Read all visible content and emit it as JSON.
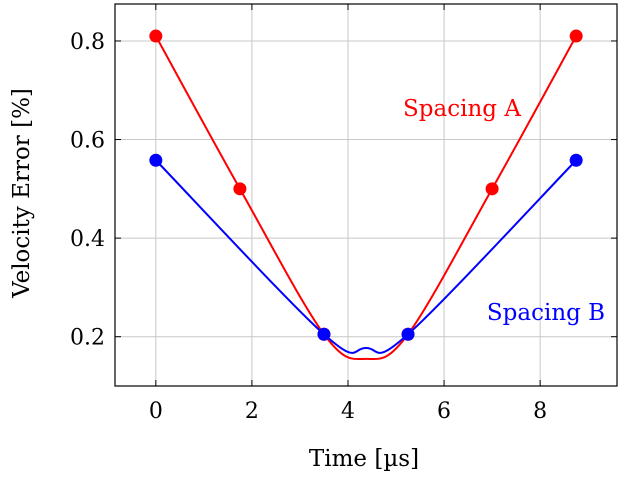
{
  "chart_data": {
    "type": "line",
    "xlabel": "Time [µs]",
    "ylabel": "Velocity Error [%]",
    "xlim": [
      -0.85,
      9.6
    ],
    "ylim": [
      0.1,
      0.875
    ],
    "xticks": [
      0,
      2,
      4,
      6,
      8
    ],
    "yticks": [
      0.2,
      0.4,
      0.6,
      0.8
    ],
    "xtick_labels": [
      "0",
      "2",
      "4",
      "6",
      "8"
    ],
    "ytick_labels": [
      "0.2",
      "0.4",
      "0.6",
      "0.8"
    ],
    "grid": true,
    "legend": "inline labels",
    "series": [
      {
        "name": "Spacing A",
        "color": "#ff0000",
        "x": [
          0,
          1.75,
          3.5,
          5.25,
          7.0,
          8.75
        ],
        "y": [
          0.81,
          0.5,
          0.205,
          0.205,
          0.5,
          0.81
        ],
        "curve_minimum": {
          "x": 4.375,
          "y": 0.155
        }
      },
      {
        "name": "Spacing B",
        "color": "#0000ff",
        "x": [
          0,
          3.5,
          5.25,
          8.75
        ],
        "y": [
          0.558,
          0.205,
          0.205,
          0.558
        ],
        "curve_minimum": {
          "x": 4.375,
          "y": 0.177
        }
      }
    ]
  }
}
